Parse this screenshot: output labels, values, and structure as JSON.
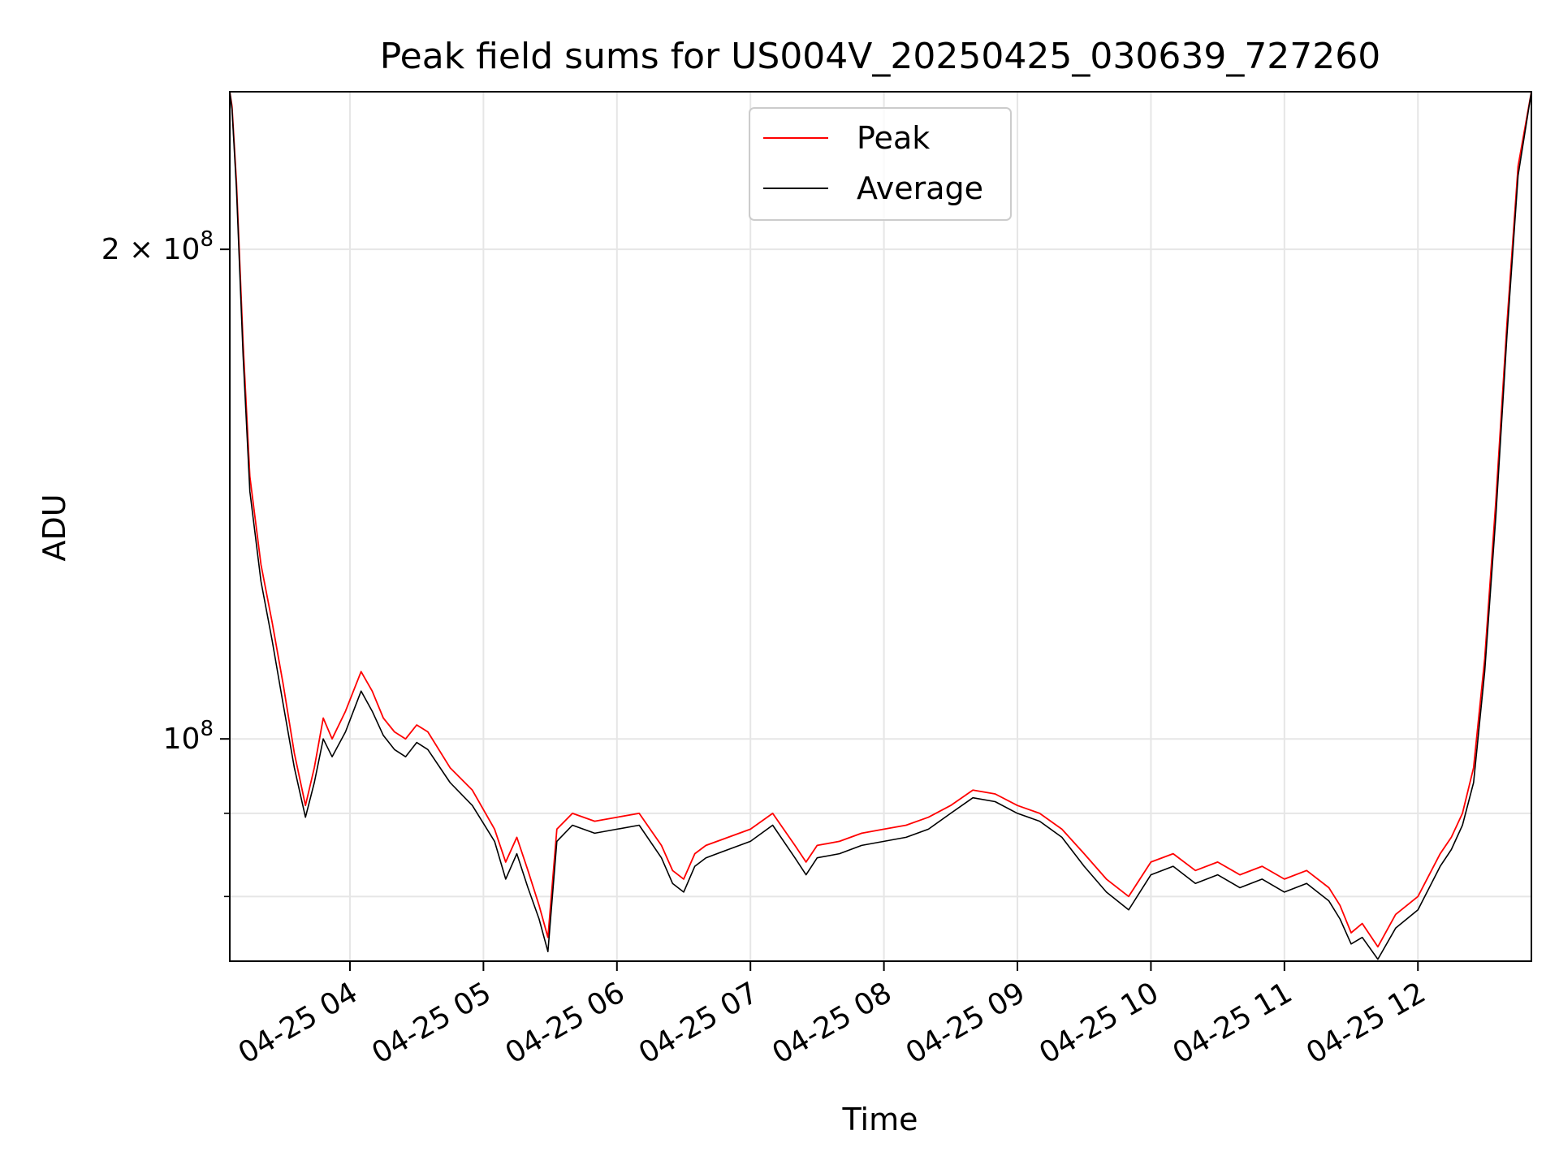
{
  "chart_data": {
    "type": "line",
    "title": "Peak field sums for US004V_20250425_030639_727260",
    "xlabel": "Time",
    "ylabel": "ADU",
    "yscale": "log",
    "xlim": [
      "2025-04-25T03:06",
      "2025-04-25T12:51"
    ],
    "ylim": [
      73000000,
      250000000
    ],
    "x_ticks": [
      "04-25 04",
      "04-25 05",
      "04-25 06",
      "04-25 07",
      "04-25 08",
      "04-25 09",
      "04-25 10",
      "04-25 11",
      "04-25 12"
    ],
    "y_ticks": [
      {
        "value": 100000000,
        "mantissa": "",
        "base": "10",
        "exp": "8"
      },
      {
        "value": 200000000,
        "mantissa": "2",
        "base": "10",
        "exp": "8"
      }
    ],
    "grid": true,
    "legend": "upper-center",
    "series": [
      {
        "name": "Peak",
        "color": "#ff0000",
        "x": [
          "03:06",
          "03:07",
          "03:09",
          "03:12",
          "03:15",
          "03:20",
          "03:25",
          "03:30",
          "03:35",
          "03:40",
          "03:44",
          "03:48",
          "03:52",
          "03:58",
          "04:05",
          "04:10",
          "04:15",
          "04:20",
          "04:25",
          "04:30",
          "04:35",
          "04:45",
          "04:55",
          "05:05",
          "05:10",
          "05:15",
          "05:20",
          "05:25",
          "05:29",
          "05:33",
          "05:40",
          "05:50",
          "06:00",
          "06:10",
          "06:20",
          "06:25",
          "06:30",
          "06:35",
          "06:40",
          "06:50",
          "07:00",
          "07:10",
          "07:20",
          "07:25",
          "07:30",
          "07:40",
          "07:50",
          "08:00",
          "08:10",
          "08:20",
          "08:30",
          "08:40",
          "08:50",
          "09:00",
          "09:10",
          "09:20",
          "09:30",
          "09:40",
          "09:50",
          "10:00",
          "10:10",
          "10:20",
          "10:30",
          "10:40",
          "10:50",
          "11:00",
          "11:10",
          "11:20",
          "11:25",
          "11:30",
          "11:35",
          "11:42",
          "11:50",
          "12:00",
          "12:10",
          "12:15",
          "12:20",
          "12:25",
          "12:30",
          "12:35",
          "12:40",
          "12:45",
          "12:51"
        ],
        "y": [
          250000000,
          245000000,
          220000000,
          175000000,
          145000000,
          128000000,
          118000000,
          108000000,
          98000000,
          91000000,
          96000000,
          103000000,
          100000000,
          104000000,
          110000000,
          107000000,
          103000000,
          101000000,
          100000000,
          102000000,
          101000000,
          96000000,
          93000000,
          88000000,
          84000000,
          87000000,
          83000000,
          79000000,
          75500000,
          88000000,
          90000000,
          89000000,
          89500000,
          90000000,
          86000000,
          83000000,
          82000000,
          85000000,
          86000000,
          87000000,
          88000000,
          90000000,
          86000000,
          84000000,
          86000000,
          86500000,
          87500000,
          88000000,
          88500000,
          89500000,
          91000000,
          93000000,
          92500000,
          91000000,
          90000000,
          88000000,
          85000000,
          82000000,
          80000000,
          84000000,
          85000000,
          83000000,
          84000000,
          82500000,
          83500000,
          82000000,
          83000000,
          81000000,
          79000000,
          76000000,
          77000000,
          74500000,
          78000000,
          80000000,
          85000000,
          87000000,
          90000000,
          96000000,
          112000000,
          140000000,
          180000000,
          225000000,
          250000000
        ]
      },
      {
        "name": "Average",
        "color": "#000000",
        "x": [
          "03:06",
          "03:07",
          "03:09",
          "03:12",
          "03:15",
          "03:20",
          "03:25",
          "03:30",
          "03:35",
          "03:40",
          "03:44",
          "03:48",
          "03:52",
          "03:58",
          "04:05",
          "04:10",
          "04:15",
          "04:20",
          "04:25",
          "04:30",
          "04:35",
          "04:45",
          "04:55",
          "05:05",
          "05:10",
          "05:15",
          "05:20",
          "05:25",
          "05:29",
          "05:33",
          "05:40",
          "05:50",
          "06:00",
          "06:10",
          "06:20",
          "06:25",
          "06:30",
          "06:35",
          "06:40",
          "06:50",
          "07:00",
          "07:10",
          "07:20",
          "07:25",
          "07:30",
          "07:40",
          "07:50",
          "08:00",
          "08:10",
          "08:20",
          "08:30",
          "08:40",
          "08:50",
          "09:00",
          "09:10",
          "09:20",
          "09:30",
          "09:40",
          "09:50",
          "10:00",
          "10:10",
          "10:20",
          "10:30",
          "10:40",
          "10:50",
          "11:00",
          "11:10",
          "11:20",
          "11:25",
          "11:30",
          "11:35",
          "11:42",
          "11:50",
          "12:00",
          "12:10",
          "12:15",
          "12:20",
          "12:25",
          "12:30",
          "12:35",
          "12:40",
          "12:45",
          "12:51"
        ],
        "y": [
          250000000,
          244000000,
          218000000,
          172000000,
          142000000,
          125000000,
          115000000,
          105000000,
          96000000,
          89500000,
          94000000,
          100000000,
          97500000,
          101000000,
          107000000,
          104000000,
          100500000,
          98500000,
          97500000,
          99500000,
          98500000,
          94000000,
          91000000,
          86500000,
          82000000,
          85000000,
          81000000,
          77500000,
          74000000,
          86500000,
          88500000,
          87500000,
          88000000,
          88500000,
          84500000,
          81500000,
          80500000,
          83500000,
          84500000,
          85500000,
          86500000,
          88500000,
          84500000,
          82500000,
          84500000,
          85000000,
          86000000,
          86500000,
          87000000,
          88000000,
          90000000,
          92000000,
          91500000,
          90000000,
          89000000,
          87000000,
          83500000,
          80500000,
          78500000,
          82500000,
          83500000,
          81500000,
          82500000,
          81000000,
          82000000,
          80500000,
          81500000,
          79500000,
          77500000,
          74800000,
          75500000,
          73200000,
          76500000,
          78500000,
          83500000,
          85500000,
          88500000,
          94000000,
          110000000,
          137000000,
          177000000,
          222000000,
          250000000
        ]
      }
    ]
  }
}
